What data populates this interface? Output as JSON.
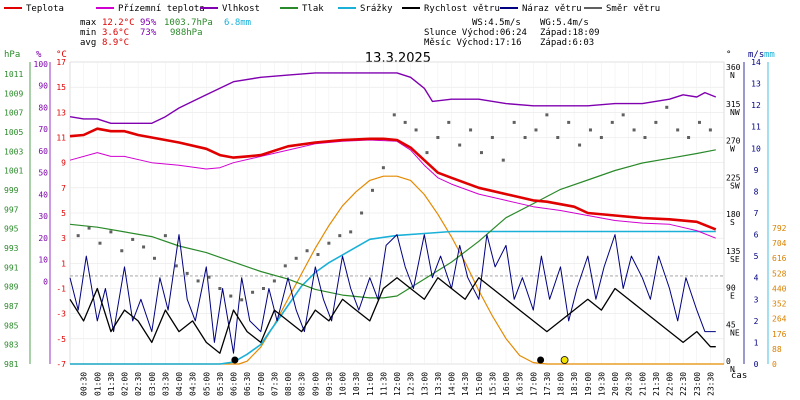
{
  "chart_data": {
    "type": "line",
    "title": "13.3.2025",
    "legend": [
      {
        "key": "temp",
        "label": "Teplota",
        "color": "#e00000"
      },
      {
        "key": "feels",
        "label": "Přízemní teplota",
        "color": "#d000d0"
      },
      {
        "key": "hum",
        "label": "Vlhkost",
        "color": "#8000b0"
      },
      {
        "key": "press",
        "label": "Tlak",
        "color": "#2a8a2a"
      },
      {
        "key": "rain",
        "label": "Srážky",
        "color": "#1ab0d8"
      },
      {
        "key": "wind",
        "label": "Rychlost větru",
        "color": "#000000"
      },
      {
        "key": "gust",
        "label": "Náraz větru",
        "color": "#000080"
      },
      {
        "key": "dir",
        "label": "Směr větru",
        "color": "#606060"
      }
    ],
    "stats": {
      "max": {
        "label": "max",
        "temp": "12.2°C",
        "hum": "95%",
        "press": "1003.7hPa",
        "rain": "6.8mm"
      },
      "min": {
        "label": "min",
        "temp": "3.6°C",
        "hum": "73%",
        "press": "988hPa"
      },
      "avg": {
        "label": "avg",
        "temp": "8.9°C"
      }
    },
    "info": {
      "ws": "WS:4.5m/s",
      "wg": "WG:5.4m/s",
      "sun": "Slunce Východ:06:24",
      "sun_set": "Západ:18:09",
      "moon": "Měsíc Východ:17:16",
      "moon_set": "Západ:6:03"
    },
    "axes": {
      "hpa": {
        "label": "hPa",
        "ticks": [
          "1011",
          "1009",
          "1007",
          "1005",
          "1003",
          "1001",
          "999",
          "997",
          "995",
          "993",
          "991",
          "989",
          "987",
          "985",
          "983",
          "981"
        ]
      },
      "pct": {
        "label": "%",
        "ticks": [
          "100",
          "90",
          "80",
          "70",
          "60",
          "50",
          "40",
          "30",
          "20",
          "10",
          "0"
        ]
      },
      "celsius": {
        "label": "°C",
        "ticks": [
          "17",
          "15",
          "13",
          "11",
          "9",
          "7",
          "5",
          "3",
          "1",
          "-1",
          "-3",
          "-5",
          "-7"
        ]
      },
      "deg": {
        "label": "°",
        "ticks": [
          {
            "v": "360",
            "d": "N"
          },
          {
            "v": "315",
            "d": "NW"
          },
          {
            "v": "270",
            "d": "W"
          },
          {
            "v": "225",
            "d": "SW"
          },
          {
            "v": "180",
            "d": "S"
          },
          {
            "v": "135",
            "d": "SE"
          },
          {
            "v": "90",
            "d": "E"
          },
          {
            "v": "45",
            "d": "NE"
          },
          {
            "v": "0",
            "d": "N"
          }
        ]
      },
      "ms": {
        "label": "m/s",
        "ticks": [
          "14",
          "13",
          "12",
          "11",
          "10",
          "9",
          "8",
          "7",
          "6",
          "5",
          "4",
          "3",
          "2",
          "1",
          "0"
        ]
      },
      "mm": {
        "label": "mm",
        "ticks": [
          "792",
          "704",
          "616",
          "528",
          "440",
          "352",
          "264",
          "176",
          "88",
          "0"
        ]
      },
      "time": {
        "label": "čas",
        "ticks": [
          "00:30",
          "01:00",
          "01:30",
          "02:00",
          "02:30",
          "03:00",
          "03:30",
          "04:00",
          "04:30",
          "05:00",
          "05:30",
          "06:00",
          "06:30",
          "07:00",
          "07:30",
          "08:00",
          "08:30",
          "09:00",
          "09:30",
          "10:00",
          "10:30",
          "11:00",
          "11:30",
          "12:00",
          "12:30",
          "13:00",
          "13:30",
          "14:00",
          "14:30",
          "15:00",
          "15:30",
          "16:00",
          "16:30",
          "17:00",
          "17:30",
          "18:00",
          "18:30",
          "19:00",
          "19:30",
          "20:00",
          "20:30",
          "21:00",
          "21:30",
          "22:00",
          "22:30",
          "23:00",
          "23:30"
        ]
      }
    },
    "xlim": [
      0,
      24
    ],
    "temp_ylim": [
      -7,
      17
    ],
    "series": {
      "temp": {
        "x": [
          0,
          0.5,
          1,
          1.5,
          2,
          2.5,
          3,
          4,
          5,
          5.5,
          6,
          6.5,
          7,
          8,
          9,
          10,
          11,
          11.5,
          12,
          12.5,
          13,
          13.5,
          14,
          15,
          16,
          17,
          17.5,
          18,
          18.5,
          19,
          20,
          21,
          22,
          23,
          23.7
        ],
        "y": [
          11.1,
          11.2,
          11.7,
          11.5,
          11.5,
          11.2,
          11.0,
          10.6,
          10.1,
          9.6,
          9.4,
          9.5,
          9.6,
          10.3,
          10.6,
          10.8,
          10.9,
          10.9,
          10.8,
          10.2,
          9.2,
          8.2,
          7.8,
          7.0,
          6.5,
          6.0,
          5.9,
          5.7,
          5.5,
          5.0,
          4.8,
          4.6,
          4.5,
          4.3,
          3.7
        ]
      },
      "feels": {
        "x": [
          0,
          1,
          1.5,
          2,
          3,
          4,
          5,
          5.5,
          6,
          7,
          8,
          9,
          10,
          11,
          12,
          12.5,
          13,
          13.5,
          14,
          15,
          16,
          17,
          18,
          19,
          20,
          21,
          22,
          23,
          23.7
        ],
        "y": [
          9.2,
          9.8,
          9.5,
          9.5,
          9.0,
          8.8,
          8.5,
          8.6,
          9.0,
          9.5,
          10.0,
          10.5,
          10.7,
          10.8,
          10.7,
          10.0,
          8.8,
          7.8,
          7.3,
          6.5,
          6.0,
          5.5,
          5.2,
          4.8,
          4.4,
          4.2,
          4.1,
          3.6,
          3.0
        ]
      },
      "hum": {
        "x": [
          0,
          0.5,
          1,
          1.5,
          2,
          3,
          3.5,
          4,
          4.5,
          5,
          5.5,
          6,
          7,
          8,
          9,
          10,
          11,
          11.5,
          12,
          12.5,
          13,
          13.3,
          14,
          15,
          16,
          17,
          18,
          19,
          20,
          21,
          22,
          22.5,
          23,
          23.3,
          23.7
        ],
        "y": [
          75,
          74,
          74,
          72,
          72,
          72,
          75,
          79,
          82,
          85,
          88,
          91,
          93,
          94,
          95,
          95,
          95,
          95,
          95,
          93,
          88,
          82,
          83,
          83,
          81,
          80,
          80,
          80,
          81,
          81,
          83,
          85,
          84,
          86,
          84
        ]
      },
      "press": {
        "x": [
          0,
          1,
          2,
          3,
          4,
          5,
          6,
          7,
          8,
          9,
          10,
          11,
          11.5,
          12,
          13,
          14,
          15,
          16,
          17,
          18,
          19,
          20,
          21,
          22,
          23,
          23.7
        ],
        "y": [
          995.8,
          995.5,
          995.0,
          994.5,
          993.5,
          992.8,
          991.8,
          990.8,
          990.0,
          988.9,
          988.3,
          988.0,
          988.0,
          988.2,
          990.0,
          991.8,
          994.0,
          996.5,
          998.0,
          999.5,
          1000.5,
          1001.5,
          1002.3,
          1002.8,
          1003.3,
          1003.7
        ]
      },
      "rain": {
        "x": [
          0,
          5.5,
          6,
          6.5,
          7,
          7.5,
          8,
          8.5,
          9,
          9.5,
          10,
          11,
          12,
          13,
          14,
          15,
          16,
          17,
          18,
          19,
          20,
          21,
          22,
          23,
          23.7
        ],
        "y": [
          0,
          0,
          0.1,
          0.5,
          1.0,
          2.0,
          3.0,
          4.0,
          4.7,
          5.2,
          5.6,
          6.4,
          6.6,
          6.7,
          6.8,
          6.8,
          6.8,
          6.8,
          6.8,
          6.8,
          6.8,
          6.8,
          6.8,
          6.8,
          6.8
        ]
      },
      "solar": {
        "x": [
          0,
          6.2,
          6.5,
          7,
          7.5,
          8,
          8.5,
          9,
          9.5,
          10,
          10.5,
          11,
          11.5,
          12,
          12.5,
          13,
          13.5,
          14,
          14.5,
          15,
          15.5,
          16,
          16.5,
          17,
          17.5,
          18,
          24
        ],
        "y": [
          0,
          0,
          10,
          60,
          140,
          230,
          320,
          410,
          490,
          560,
          610,
          650,
          665,
          665,
          650,
          600,
          530,
          450,
          360,
          260,
          170,
          90,
          30,
          5,
          0,
          0,
          0
        ]
      },
      "wind": {
        "x": [
          0,
          0.5,
          1,
          1.5,
          2,
          2.5,
          3,
          3.5,
          4,
          4.5,
          5,
          5.5,
          6,
          6.5,
          7,
          7.5,
          8,
          8.5,
          9,
          9.5,
          10,
          10.5,
          11,
          11.5,
          12,
          12.5,
          13,
          13.5,
          14,
          14.5,
          15,
          15.5,
          16,
          16.5,
          17,
          17.5,
          18,
          18.5,
          19,
          19.5,
          20,
          20.5,
          21,
          21.5,
          22,
          22.5,
          23,
          23.5,
          23.7
        ],
        "y": [
          3.0,
          2.0,
          3.5,
          1.5,
          2.5,
          2.0,
          1.0,
          2.5,
          1.5,
          2.0,
          1.0,
          0.5,
          2.5,
          1.5,
          1.0,
          2.5,
          2.0,
          1.5,
          2.5,
          2.0,
          3.0,
          2.5,
          2.0,
          3.5,
          4.0,
          3.5,
          3.0,
          4.0,
          3.5,
          3.0,
          4.0,
          3.5,
          3.0,
          2.5,
          2.0,
          1.5,
          2.0,
          2.5,
          3.0,
          2.5,
          3.5,
          3.0,
          2.5,
          2.0,
          1.5,
          1.0,
          1.5,
          0.8,
          0.8
        ]
      },
      "gust": {
        "x": [
          0,
          0.3,
          0.6,
          1,
          1.3,
          1.6,
          2,
          2.3,
          2.6,
          3,
          3.3,
          3.6,
          4,
          4.3,
          4.6,
          5,
          5.3,
          5.6,
          6,
          6.3,
          6.6,
          7,
          7.3,
          7.6,
          8,
          8.3,
          8.6,
          9,
          9.3,
          9.6,
          10,
          10.3,
          10.6,
          11,
          11.3,
          11.6,
          12,
          12.3,
          12.6,
          13,
          13.3,
          13.6,
          14,
          14.3,
          14.6,
          15,
          15.3,
          15.6,
          16,
          16.3,
          16.6,
          17,
          17.3,
          17.6,
          18,
          18.3,
          18.6,
          19,
          19.3,
          19.6,
          20,
          20.3,
          20.6,
          21,
          21.3,
          21.6,
          22,
          22.3,
          22.6,
          23,
          23.3,
          23.7
        ],
        "y": [
          4.0,
          2.5,
          5.0,
          2.0,
          3.5,
          1.5,
          4.5,
          2.0,
          3.0,
          1.5,
          4.0,
          2.5,
          6.0,
          3.0,
          2.0,
          4.5,
          1.0,
          3.5,
          0.5,
          4.0,
          2.0,
          1.5,
          3.5,
          2.0,
          4.0,
          2.5,
          1.5,
          4.5,
          3.0,
          2.0,
          5.0,
          3.5,
          2.5,
          4.0,
          3.0,
          5.5,
          6.0,
          4.5,
          3.5,
          6.0,
          4.0,
          5.0,
          3.5,
          5.5,
          4.0,
          3.0,
          6.0,
          4.5,
          5.5,
          3.0,
          4.0,
          2.5,
          5.0,
          3.0,
          4.5,
          2.0,
          3.5,
          5.0,
          3.0,
          4.5,
          6.0,
          3.5,
          5.0,
          4.0,
          3.0,
          5.0,
          3.5,
          2.0,
          4.0,
          2.5,
          1.5,
          1.5
        ]
      },
      "dir": {
        "x": [
          0.3,
          0.7,
          1.1,
          1.5,
          1.9,
          2.3,
          2.7,
          3.1,
          3.5,
          3.9,
          4.3,
          4.7,
          5.1,
          5.5,
          5.9,
          6.3,
          6.7,
          7.1,
          7.5,
          7.9,
          8.3,
          8.7,
          9.1,
          9.5,
          9.9,
          10.3,
          10.7,
          11.1,
          11.5,
          11.9,
          12.3,
          12.7,
          13.1,
          13.5,
          13.9,
          14.3,
          14.7,
          15.1,
          15.5,
          15.9,
          16.3,
          16.7,
          17.1,
          17.5,
          17.9,
          18.3,
          18.7,
          19.1,
          19.5,
          19.9,
          20.3,
          20.7,
          21.1,
          21.5,
          21.9,
          22.3,
          22.7,
          23.1,
          23.5
        ],
        "y": [
          170,
          180,
          160,
          175,
          150,
          165,
          155,
          140,
          170,
          130,
          120,
          110,
          115,
          100,
          90,
          85,
          95,
          100,
          110,
          130,
          140,
          150,
          145,
          160,
          170,
          175,
          200,
          230,
          260,
          330,
          320,
          310,
          280,
          300,
          320,
          290,
          310,
          280,
          300,
          270,
          320,
          300,
          310,
          330,
          300,
          320,
          290,
          310,
          300,
          320,
          330,
          310,
          300,
          320,
          340,
          310,
          300,
          320,
          310
        ]
      }
    },
    "markers": {
      "moonset": {
        "x": 6.05,
        "color": "#000000"
      },
      "moonrise": {
        "x": 17.27,
        "color": "#000000"
      },
      "sunset": {
        "x": 18.15,
        "color": "#f2e200"
      }
    }
  }
}
